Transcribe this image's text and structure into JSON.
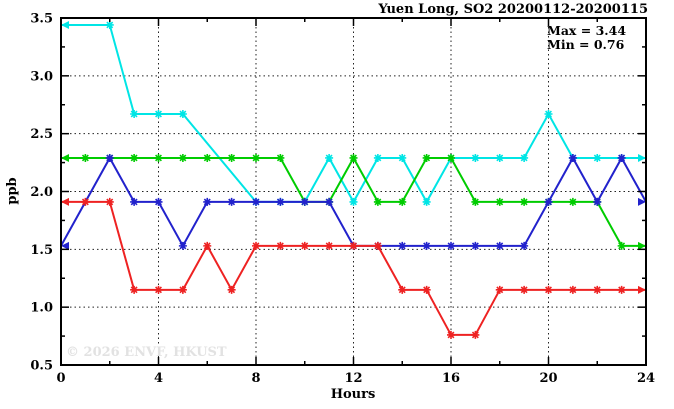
{
  "chart_data": {
    "type": "line",
    "title": "Yuen Long, SO2 20200112-20200115",
    "xlabel": "Hours",
    "ylabel": "ppb",
    "xlim": [
      0,
      24
    ],
    "ylim": [
      0.5,
      3.5
    ],
    "x_major_ticks": [
      0,
      4,
      8,
      12,
      16,
      20,
      24
    ],
    "x_minor_ticks": [
      2,
      6,
      10,
      14,
      18,
      22
    ],
    "y_major_ticks": [
      0.5,
      1.0,
      1.5,
      2.0,
      2.5,
      3.0,
      3.5
    ],
    "y_minor_ticks": [
      0.75,
      1.25,
      1.75,
      2.25,
      2.75,
      3.25
    ],
    "grid_x_lines": [
      4,
      8,
      12,
      16,
      20
    ],
    "grid_y_lines": [
      1.0,
      1.5,
      2.0,
      2.5,
      3.0
    ],
    "legend_position": "none",
    "annotations": {
      "max_label": "Max = 3.44",
      "min_label": "Min = 0.76"
    },
    "watermark": "© 2026 ENVF, HKUST",
    "series": [
      {
        "name": "cyan",
        "color": "#00e5e5",
        "points": [
          [
            0,
            3.44
          ],
          [
            2,
            3.44
          ],
          [
            3,
            2.67
          ],
          [
            4,
            2.67
          ],
          [
            5,
            2.67
          ],
          [
            8,
            1.91
          ],
          [
            9,
            1.91
          ],
          [
            10,
            1.91
          ],
          [
            11,
            2.29
          ],
          [
            12,
            1.91
          ],
          [
            13,
            2.29
          ],
          [
            14,
            2.29
          ],
          [
            15,
            1.91
          ],
          [
            16,
            2.29
          ],
          [
            17,
            2.29
          ],
          [
            18,
            2.29
          ],
          [
            19,
            2.29
          ],
          [
            20,
            2.67
          ],
          [
            21,
            2.29
          ],
          [
            22,
            2.29
          ],
          [
            23,
            2.29
          ],
          [
            24,
            2.29
          ]
        ]
      },
      {
        "name": "green",
        "color": "#00cc00",
        "points": [
          [
            0,
            2.29
          ],
          [
            1,
            2.29
          ],
          [
            2,
            2.29
          ],
          [
            3,
            2.29
          ],
          [
            4,
            2.29
          ],
          [
            5,
            2.29
          ],
          [
            6,
            2.29
          ],
          [
            7,
            2.29
          ],
          [
            8,
            2.29
          ],
          [
            9,
            2.29
          ],
          [
            10,
            1.91
          ],
          [
            11,
            1.91
          ],
          [
            12,
            2.29
          ],
          [
            13,
            1.91
          ],
          [
            14,
            1.91
          ],
          [
            15,
            2.29
          ],
          [
            16,
            2.29
          ],
          [
            17,
            1.91
          ],
          [
            18,
            1.91
          ],
          [
            19,
            1.91
          ],
          [
            20,
            1.91
          ],
          [
            21,
            1.91
          ],
          [
            22,
            1.91
          ],
          [
            23,
            1.53
          ],
          [
            24,
            1.53
          ]
        ]
      },
      {
        "name": "blue",
        "color": "#2222cc",
        "points": [
          [
            0,
            1.53
          ],
          [
            2,
            2.29
          ],
          [
            3,
            1.91
          ],
          [
            4,
            1.91
          ],
          [
            5,
            1.53
          ],
          [
            6,
            1.91
          ],
          [
            7,
            1.91
          ],
          [
            8,
            1.91
          ],
          [
            9,
            1.91
          ],
          [
            10,
            1.91
          ],
          [
            11,
            1.91
          ],
          [
            12,
            1.53
          ],
          [
            13,
            1.53
          ],
          [
            14,
            1.53
          ],
          [
            15,
            1.53
          ],
          [
            16,
            1.53
          ],
          [
            17,
            1.53
          ],
          [
            18,
            1.53
          ],
          [
            19,
            1.53
          ],
          [
            20,
            1.91
          ],
          [
            21,
            2.29
          ],
          [
            22,
            1.91
          ],
          [
            23,
            2.29
          ],
          [
            24,
            1.91
          ]
        ]
      },
      {
        "name": "red",
        "color": "#ee2222",
        "points": [
          [
            0,
            1.91
          ],
          [
            1,
            1.91
          ],
          [
            2,
            1.91
          ],
          [
            3,
            1.15
          ],
          [
            4,
            1.15
          ],
          [
            5,
            1.15
          ],
          [
            6,
            1.53
          ],
          [
            7,
            1.15
          ],
          [
            8,
            1.53
          ],
          [
            9,
            1.53
          ],
          [
            10,
            1.53
          ],
          [
            11,
            1.53
          ],
          [
            12,
            1.53
          ],
          [
            13,
            1.53
          ],
          [
            14,
            1.15
          ],
          [
            15,
            1.15
          ],
          [
            16,
            0.76
          ],
          [
            17,
            0.76
          ],
          [
            18,
            1.15
          ],
          [
            19,
            1.15
          ],
          [
            20,
            1.15
          ],
          [
            21,
            1.15
          ],
          [
            22,
            1.15
          ],
          [
            23,
            1.15
          ],
          [
            24,
            1.15
          ]
        ]
      }
    ]
  }
}
